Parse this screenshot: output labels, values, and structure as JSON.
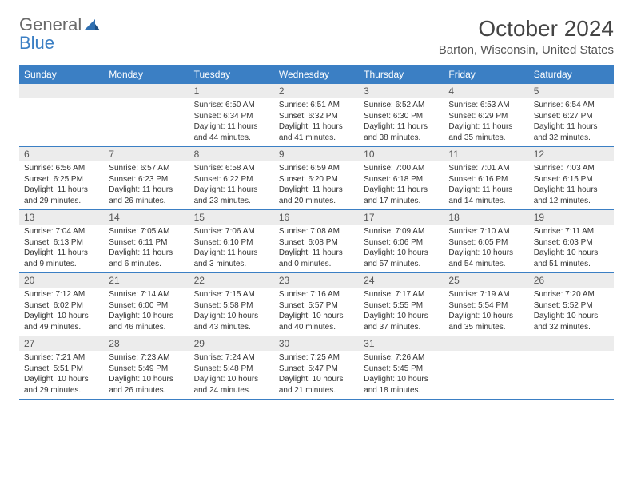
{
  "logo": {
    "word1": "General",
    "word2": "Blue"
  },
  "title": "October 2024",
  "location": "Barton, Wisconsin, United States",
  "header_bg": "#3b7fc4",
  "day_headers": [
    "Sunday",
    "Monday",
    "Tuesday",
    "Wednesday",
    "Thursday",
    "Friday",
    "Saturday"
  ],
  "weeks": [
    [
      {
        "day": "",
        "sunrise": "",
        "sunset": "",
        "daylight1": "",
        "daylight2": ""
      },
      {
        "day": "",
        "sunrise": "",
        "sunset": "",
        "daylight1": "",
        "daylight2": ""
      },
      {
        "day": "1",
        "sunrise": "Sunrise: 6:50 AM",
        "sunset": "Sunset: 6:34 PM",
        "daylight1": "Daylight: 11 hours",
        "daylight2": "and 44 minutes."
      },
      {
        "day": "2",
        "sunrise": "Sunrise: 6:51 AM",
        "sunset": "Sunset: 6:32 PM",
        "daylight1": "Daylight: 11 hours",
        "daylight2": "and 41 minutes."
      },
      {
        "day": "3",
        "sunrise": "Sunrise: 6:52 AM",
        "sunset": "Sunset: 6:30 PM",
        "daylight1": "Daylight: 11 hours",
        "daylight2": "and 38 minutes."
      },
      {
        "day": "4",
        "sunrise": "Sunrise: 6:53 AM",
        "sunset": "Sunset: 6:29 PM",
        "daylight1": "Daylight: 11 hours",
        "daylight2": "and 35 minutes."
      },
      {
        "day": "5",
        "sunrise": "Sunrise: 6:54 AM",
        "sunset": "Sunset: 6:27 PM",
        "daylight1": "Daylight: 11 hours",
        "daylight2": "and 32 minutes."
      }
    ],
    [
      {
        "day": "6",
        "sunrise": "Sunrise: 6:56 AM",
        "sunset": "Sunset: 6:25 PM",
        "daylight1": "Daylight: 11 hours",
        "daylight2": "and 29 minutes."
      },
      {
        "day": "7",
        "sunrise": "Sunrise: 6:57 AM",
        "sunset": "Sunset: 6:23 PM",
        "daylight1": "Daylight: 11 hours",
        "daylight2": "and 26 minutes."
      },
      {
        "day": "8",
        "sunrise": "Sunrise: 6:58 AM",
        "sunset": "Sunset: 6:22 PM",
        "daylight1": "Daylight: 11 hours",
        "daylight2": "and 23 minutes."
      },
      {
        "day": "9",
        "sunrise": "Sunrise: 6:59 AM",
        "sunset": "Sunset: 6:20 PM",
        "daylight1": "Daylight: 11 hours",
        "daylight2": "and 20 minutes."
      },
      {
        "day": "10",
        "sunrise": "Sunrise: 7:00 AM",
        "sunset": "Sunset: 6:18 PM",
        "daylight1": "Daylight: 11 hours",
        "daylight2": "and 17 minutes."
      },
      {
        "day": "11",
        "sunrise": "Sunrise: 7:01 AM",
        "sunset": "Sunset: 6:16 PM",
        "daylight1": "Daylight: 11 hours",
        "daylight2": "and 14 minutes."
      },
      {
        "day": "12",
        "sunrise": "Sunrise: 7:03 AM",
        "sunset": "Sunset: 6:15 PM",
        "daylight1": "Daylight: 11 hours",
        "daylight2": "and 12 minutes."
      }
    ],
    [
      {
        "day": "13",
        "sunrise": "Sunrise: 7:04 AM",
        "sunset": "Sunset: 6:13 PM",
        "daylight1": "Daylight: 11 hours",
        "daylight2": "and 9 minutes."
      },
      {
        "day": "14",
        "sunrise": "Sunrise: 7:05 AM",
        "sunset": "Sunset: 6:11 PM",
        "daylight1": "Daylight: 11 hours",
        "daylight2": "and 6 minutes."
      },
      {
        "day": "15",
        "sunrise": "Sunrise: 7:06 AM",
        "sunset": "Sunset: 6:10 PM",
        "daylight1": "Daylight: 11 hours",
        "daylight2": "and 3 minutes."
      },
      {
        "day": "16",
        "sunrise": "Sunrise: 7:08 AM",
        "sunset": "Sunset: 6:08 PM",
        "daylight1": "Daylight: 11 hours",
        "daylight2": "and 0 minutes."
      },
      {
        "day": "17",
        "sunrise": "Sunrise: 7:09 AM",
        "sunset": "Sunset: 6:06 PM",
        "daylight1": "Daylight: 10 hours",
        "daylight2": "and 57 minutes."
      },
      {
        "day": "18",
        "sunrise": "Sunrise: 7:10 AM",
        "sunset": "Sunset: 6:05 PM",
        "daylight1": "Daylight: 10 hours",
        "daylight2": "and 54 minutes."
      },
      {
        "day": "19",
        "sunrise": "Sunrise: 7:11 AM",
        "sunset": "Sunset: 6:03 PM",
        "daylight1": "Daylight: 10 hours",
        "daylight2": "and 51 minutes."
      }
    ],
    [
      {
        "day": "20",
        "sunrise": "Sunrise: 7:12 AM",
        "sunset": "Sunset: 6:02 PM",
        "daylight1": "Daylight: 10 hours",
        "daylight2": "and 49 minutes."
      },
      {
        "day": "21",
        "sunrise": "Sunrise: 7:14 AM",
        "sunset": "Sunset: 6:00 PM",
        "daylight1": "Daylight: 10 hours",
        "daylight2": "and 46 minutes."
      },
      {
        "day": "22",
        "sunrise": "Sunrise: 7:15 AM",
        "sunset": "Sunset: 5:58 PM",
        "daylight1": "Daylight: 10 hours",
        "daylight2": "and 43 minutes."
      },
      {
        "day": "23",
        "sunrise": "Sunrise: 7:16 AM",
        "sunset": "Sunset: 5:57 PM",
        "daylight1": "Daylight: 10 hours",
        "daylight2": "and 40 minutes."
      },
      {
        "day": "24",
        "sunrise": "Sunrise: 7:17 AM",
        "sunset": "Sunset: 5:55 PM",
        "daylight1": "Daylight: 10 hours",
        "daylight2": "and 37 minutes."
      },
      {
        "day": "25",
        "sunrise": "Sunrise: 7:19 AM",
        "sunset": "Sunset: 5:54 PM",
        "daylight1": "Daylight: 10 hours",
        "daylight2": "and 35 minutes."
      },
      {
        "day": "26",
        "sunrise": "Sunrise: 7:20 AM",
        "sunset": "Sunset: 5:52 PM",
        "daylight1": "Daylight: 10 hours",
        "daylight2": "and 32 minutes."
      }
    ],
    [
      {
        "day": "27",
        "sunrise": "Sunrise: 7:21 AM",
        "sunset": "Sunset: 5:51 PM",
        "daylight1": "Daylight: 10 hours",
        "daylight2": "and 29 minutes."
      },
      {
        "day": "28",
        "sunrise": "Sunrise: 7:23 AM",
        "sunset": "Sunset: 5:49 PM",
        "daylight1": "Daylight: 10 hours",
        "daylight2": "and 26 minutes."
      },
      {
        "day": "29",
        "sunrise": "Sunrise: 7:24 AM",
        "sunset": "Sunset: 5:48 PM",
        "daylight1": "Daylight: 10 hours",
        "daylight2": "and 24 minutes."
      },
      {
        "day": "30",
        "sunrise": "Sunrise: 7:25 AM",
        "sunset": "Sunset: 5:47 PM",
        "daylight1": "Daylight: 10 hours",
        "daylight2": "and 21 minutes."
      },
      {
        "day": "31",
        "sunrise": "Sunrise: 7:26 AM",
        "sunset": "Sunset: 5:45 PM",
        "daylight1": "Daylight: 10 hours",
        "daylight2": "and 18 minutes."
      },
      {
        "day": "",
        "sunrise": "",
        "sunset": "",
        "daylight1": "",
        "daylight2": ""
      },
      {
        "day": "",
        "sunrise": "",
        "sunset": "",
        "daylight1": "",
        "daylight2": ""
      }
    ]
  ]
}
